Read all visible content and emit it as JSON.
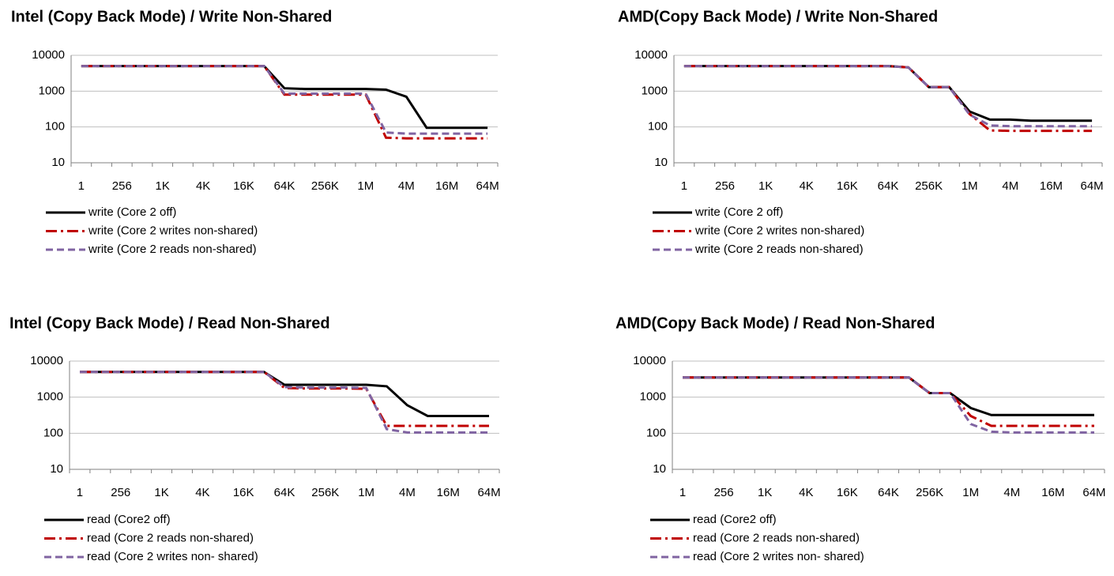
{
  "chart_data": [
    {
      "type": "line",
      "title": "Intel (Copy Back Mode) /   Write Non-Shared",
      "log_scale": true,
      "grid": true,
      "legend": "bottom",
      "categories": [
        "1",
        null,
        "256",
        null,
        "1K",
        null,
        "4K",
        null,
        "16K",
        null,
        "64K",
        null,
        "256K",
        null,
        "1M",
        null,
        "4M",
        null,
        "16M",
        null,
        "64M"
      ],
      "ylim": [
        10,
        10000
      ],
      "yticks": [
        10,
        100,
        1000,
        10000
      ],
      "series": [
        {
          "name": "write (Core 2 off)",
          "color": "#000000",
          "style": "solid",
          "values": [
            5000,
            5000,
            5000,
            5000,
            5000,
            5000,
            5000,
            5000,
            5000,
            5000,
            1200,
            1150,
            1150,
            1150,
            1150,
            1100,
            700,
            95,
            95,
            95,
            95
          ]
        },
        {
          "name": "write (Core 2 writes non-shared)",
          "color": "#c00000",
          "style": "dashdot",
          "values": [
            5000,
            5000,
            5000,
            5000,
            5000,
            5000,
            5000,
            5000,
            5000,
            5000,
            800,
            800,
            800,
            800,
            800,
            50,
            48,
            48,
            48,
            48,
            48
          ]
        },
        {
          "name": "write (Core 2 reads non-shared)",
          "color": "#8064a2",
          "style": "dashed",
          "values": [
            5000,
            5000,
            5000,
            5000,
            5000,
            5000,
            5000,
            5000,
            5000,
            5000,
            850,
            850,
            850,
            850,
            850,
            70,
            65,
            65,
            65,
            65,
            65
          ]
        }
      ]
    },
    {
      "type": "line",
      "title": "AMD(Copy Back Mode) /  Write Non-Shared",
      "log_scale": true,
      "grid": true,
      "legend": "bottom",
      "categories": [
        "1",
        null,
        "256",
        null,
        "1K",
        null,
        "4K",
        null,
        "16K",
        null,
        "64K",
        null,
        "256K",
        null,
        "1M",
        null,
        "4M",
        null,
        "16M",
        null,
        "64M"
      ],
      "ylim": [
        10,
        10000
      ],
      "yticks": [
        10,
        100,
        1000,
        10000
      ],
      "series": [
        {
          "name": "write (Core 2 off)",
          "color": "#000000",
          "style": "solid",
          "values": [
            5000,
            5000,
            5000,
            5000,
            5000,
            5000,
            5000,
            5000,
            5000,
            5000,
            5000,
            4600,
            1300,
            1300,
            270,
            160,
            160,
            150,
            150,
            150,
            150
          ]
        },
        {
          "name": "write (Core 2 writes non-shared)",
          "color": "#c00000",
          "style": "dashdot",
          "values": [
            5000,
            5000,
            5000,
            5000,
            5000,
            5000,
            5000,
            5000,
            5000,
            5000,
            5000,
            4600,
            1300,
            1300,
            230,
            80,
            78,
            78,
            78,
            78,
            78
          ]
        },
        {
          "name": "write (Core 2 reads non-shared)",
          "color": "#8064a2",
          "style": "dashed",
          "values": [
            5000,
            5000,
            5000,
            5000,
            5000,
            5000,
            5000,
            5000,
            5000,
            5000,
            5000,
            4600,
            1300,
            1300,
            220,
            110,
            105,
            105,
            105,
            105,
            105
          ]
        }
      ]
    },
    {
      "type": "line",
      "title": "Intel (Copy Back Mode) / Read Non-Shared",
      "log_scale": true,
      "grid": true,
      "legend": "bottom",
      "categories": [
        "1",
        null,
        "256",
        null,
        "1K",
        null,
        "4K",
        null,
        "16K",
        null,
        "64K",
        null,
        "256K",
        null,
        "1M",
        null,
        "4M",
        null,
        "16M",
        null,
        "64M"
      ],
      "ylim": [
        10,
        10000
      ],
      "yticks": [
        10,
        100,
        1000,
        10000
      ],
      "series": [
        {
          "name": "read (Core2 off)",
          "color": "#000000",
          "style": "solid",
          "values": [
            5000,
            5000,
            5000,
            5000,
            5000,
            5000,
            5000,
            5000,
            5000,
            5000,
            2200,
            2200,
            2200,
            2200,
            2200,
            2000,
            600,
            300,
            300,
            300,
            300
          ]
        },
        {
          "name": "read (Core 2 reads non-shared)",
          "color": "#c00000",
          "style": "dashdot",
          "values": [
            5000,
            5000,
            5000,
            5000,
            5000,
            5000,
            5000,
            5000,
            5000,
            5000,
            1800,
            1750,
            1750,
            1750,
            1700,
            160,
            160,
            160,
            160,
            160,
            160
          ]
        },
        {
          "name": "read (Core 2 writes non- shared)",
          "color": "#8064a2",
          "style": "dashed",
          "values": [
            5000,
            5000,
            5000,
            5000,
            5000,
            5000,
            5000,
            5000,
            5000,
            5000,
            1900,
            1850,
            1850,
            1850,
            1800,
            130,
            105,
            105,
            105,
            105,
            105
          ]
        }
      ]
    },
    {
      "type": "line",
      "title": "AMD(Copy Back Mode) /  Read Non-Shared",
      "log_scale": true,
      "grid": true,
      "legend": "bottom",
      "categories": [
        "1",
        null,
        "256",
        null,
        "1K",
        null,
        "4K",
        null,
        "16K",
        null,
        "64K",
        null,
        "256K",
        null,
        "1M",
        null,
        "4M",
        null,
        "16M",
        null,
        "64M"
      ],
      "ylim": [
        10,
        10000
      ],
      "yticks": [
        10,
        100,
        1000,
        10000
      ],
      "series": [
        {
          "name": "read (Core2 off)",
          "color": "#000000",
          "style": "solid",
          "values": [
            3500,
            3500,
            3500,
            3500,
            3500,
            3500,
            3500,
            3500,
            3500,
            3500,
            3500,
            3500,
            1300,
            1300,
            500,
            320,
            320,
            320,
            320,
            320,
            320
          ]
        },
        {
          "name": "read (Core 2 reads non-shared)",
          "color": "#c00000",
          "style": "dashdot",
          "values": [
            3500,
            3500,
            3500,
            3500,
            3500,
            3500,
            3500,
            3500,
            3500,
            3500,
            3500,
            3500,
            1300,
            1300,
            300,
            160,
            160,
            160,
            160,
            160,
            160
          ]
        },
        {
          "name": "read (Core 2 writes non- shared)",
          "color": "#8064a2",
          "style": "dashed",
          "values": [
            3500,
            3500,
            3500,
            3500,
            3500,
            3500,
            3500,
            3500,
            3500,
            3500,
            3500,
            3500,
            1300,
            1300,
            180,
            110,
            105,
            105,
            105,
            105,
            105
          ]
        }
      ]
    }
  ]
}
